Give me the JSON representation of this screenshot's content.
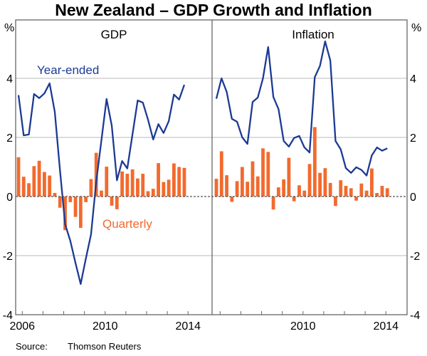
{
  "title": "New Zealand – GDP Growth and Inflation",
  "source_label": "Source:",
  "source": "Thomson Reuters",
  "colors": {
    "year_ended": "#1c3a94",
    "quarterly": "#f26a2e",
    "grid": "#c8c8c8",
    "frame": "#666666"
  },
  "chart_data": [
    {
      "type": "bar+line",
      "title": "GDP",
      "ylabel": "%",
      "ylim": [
        -4,
        6
      ],
      "yticks": [
        -4,
        -2,
        0,
        2,
        4
      ],
      "xticks": [
        "2006",
        "2010",
        "2014"
      ],
      "grid": true,
      "start_quarter": "2005-Q4",
      "annotations": {
        "line": "Year-ended",
        "bars": "Quarterly"
      },
      "series": [
        {
          "name": "Year-ended",
          "kind": "line",
          "values": [
            3.43,
            2.07,
            2.1,
            3.47,
            3.33,
            3.49,
            3.83,
            2.87,
            0.9,
            -0.94,
            -1.5,
            -2.25,
            -2.96,
            -2.1,
            -1.28,
            0.5,
            1.9,
            3.3,
            2.4,
            0.55,
            1.2,
            0.95,
            2.1,
            3.25,
            3.18,
            2.6,
            1.93,
            2.45,
            2.15,
            2.55,
            3.45,
            3.28,
            3.78
          ]
        },
        {
          "name": "Quarterly",
          "kind": "bar",
          "values": [
            1.33,
            0.67,
            0.45,
            1.03,
            1.21,
            0.83,
            0.71,
            0.12,
            -0.38,
            -1.14,
            -0.19,
            -0.69,
            -1.06,
            -0.19,
            0.59,
            1.48,
            0.2,
            1.01,
            -0.31,
            -0.43,
            0.85,
            0.77,
            0.92,
            0.61,
            0.77,
            0.18,
            0.26,
            1.13,
            0.49,
            0.57,
            1.12,
            1.0,
            0.97
          ]
        }
      ]
    },
    {
      "type": "bar+line",
      "title": "Inflation",
      "ylabel": "%",
      "ylim": [
        -4,
        6
      ],
      "yticks": [
        -4,
        -2,
        0,
        2,
        4
      ],
      "xticks": [
        "2010",
        "2014"
      ],
      "grid": true,
      "start_quarter": "2005-Q4",
      "series": [
        {
          "name": "Year-ended",
          "kind": "line",
          "values": [
            3.31,
            4.0,
            3.54,
            2.63,
            2.53,
            2.0,
            1.78,
            3.2,
            3.35,
            4.0,
            5.06,
            3.37,
            2.96,
            1.88,
            1.69,
            1.98,
            2.05,
            1.66,
            1.49,
            4.04,
            4.42,
            5.25,
            4.6,
            1.88,
            1.6,
            0.96,
            0.8,
            0.99,
            0.9,
            0.71,
            1.39,
            1.66,
            1.55,
            1.63
          ]
        },
        {
          "name": "Quarterly",
          "kind": "bar",
          "values": [
            0.6,
            1.53,
            0.72,
            -0.18,
            0.52,
            1.0,
            0.5,
            1.19,
            0.68,
            1.63,
            1.51,
            -0.44,
            0.31,
            0.58,
            1.31,
            -0.16,
            0.38,
            0.2,
            1.1,
            2.35,
            0.8,
            0.96,
            0.46,
            -0.32,
            0.55,
            0.36,
            0.28,
            -0.14,
            0.44,
            0.2,
            0.95,
            0.12,
            0.36,
            0.28
          ]
        }
      ]
    }
  ]
}
